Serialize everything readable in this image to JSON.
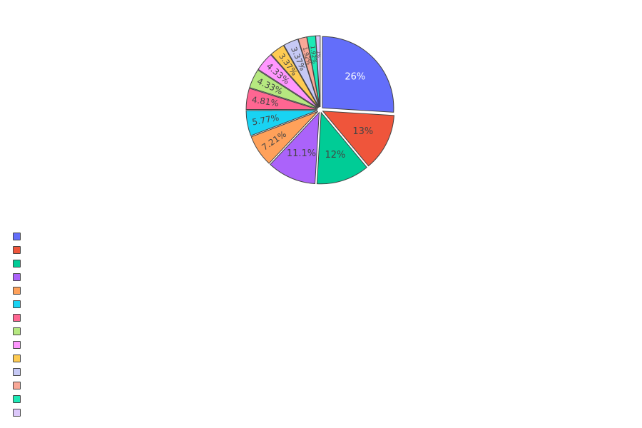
{
  "chart_data": {
    "type": "pie",
    "sort": "descending",
    "direction": "clockwise",
    "start_angle_deg": 90,
    "pull": 0.04,
    "slices": [
      {
        "name": "",
        "value": 26.0,
        "label": "26%",
        "color": "#636efa",
        "label_color": "#ffffff"
      },
      {
        "name": "",
        "value": 13.0,
        "label": "13%",
        "color": "#ef553b",
        "label_color": "#444444"
      },
      {
        "name": "",
        "value": 12.0,
        "label": "12%",
        "color": "#00cc96",
        "label_color": "#444444"
      },
      {
        "name": "",
        "value": 11.1,
        "label": "11.1%",
        "color": "#ab63fa",
        "label_color": "#444444"
      },
      {
        "name": "",
        "value": 7.21,
        "label": "7.21%",
        "color": "#ffa15a",
        "label_color": "#444444"
      },
      {
        "name": "",
        "value": 5.77,
        "label": "5.77%",
        "color": "#19d3f3",
        "label_color": "#444444"
      },
      {
        "name": "",
        "value": 4.81,
        "label": "4.81%",
        "color": "#ff6692",
        "label_color": "#444444"
      },
      {
        "name": "",
        "value": 4.33,
        "label": "4.33%",
        "color": "#b6e880",
        "label_color": "#444444"
      },
      {
        "name": "",
        "value": 4.33,
        "label": "4.33%",
        "color": "#ff97ff",
        "label_color": "#444444"
      },
      {
        "name": "",
        "value": 3.37,
        "label": "3.37%",
        "color": "#fecb52",
        "label_color": "#444444"
      },
      {
        "name": "",
        "value": 3.37,
        "label": "3.37%",
        "color": "#c6c9f5",
        "label_color": "#444444"
      },
      {
        "name": "",
        "value": 1.92,
        "label": "1.92%",
        "color": "#f9a898",
        "label_color": "#444444"
      },
      {
        "name": "",
        "value": 1.92,
        "label": "1.92%",
        "color": "#1de9b6",
        "label_color": "#444444"
      },
      {
        "name": "",
        "value": 1.0,
        "label": "1%",
        "color": "#dcc8fa",
        "label_color": "#444444"
      }
    ],
    "legend": "left"
  }
}
